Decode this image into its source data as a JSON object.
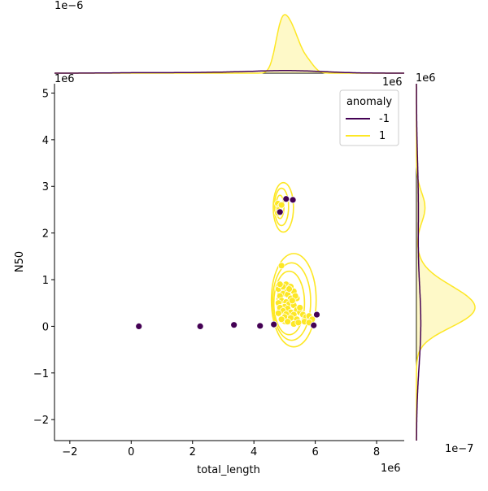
{
  "chart_data": {
    "type": "scatter",
    "title": "",
    "xlabel": "total_length",
    "ylabel": "N50",
    "xlim": [
      -2500000,
      8900000
    ],
    "ylim": [
      -2450000,
      5200000
    ],
    "x_ticks": [
      -2,
      0,
      2,
      4,
      6,
      8
    ],
    "y_ticks": [
      -2,
      -1,
      0,
      1,
      2,
      3,
      4,
      5
    ],
    "x_offset_label": "1e6",
    "y_offset_label": "1e6",
    "top_marginal_offset_label": "1e−6",
    "right_marginal_offset_label": "1e−7",
    "grid": false,
    "legend": {
      "title": "anomaly",
      "placement": "top-right",
      "entries": [
        {
          "label": "-1",
          "color": "#440154"
        },
        {
          "label": "1",
          "color": "#fde725"
        }
      ]
    },
    "series": [
      {
        "name": "-1",
        "color": "#440154",
        "points": [
          [
            250000,
            0
          ],
          [
            2250000,
            0
          ],
          [
            3350000,
            30000
          ],
          [
            4200000,
            10000
          ],
          [
            4650000,
            40000
          ],
          [
            5050000,
            2730000
          ],
          [
            5270000,
            2710000
          ],
          [
            5950000,
            20000
          ],
          [
            6050000,
            250000
          ],
          [
            4850000,
            2450000
          ]
        ]
      },
      {
        "name": "1",
        "color": "#fde725",
        "points": [
          [
            4780000,
            2630000
          ],
          [
            4850000,
            2560000
          ],
          [
            4820000,
            2500000
          ],
          [
            4900000,
            2600000
          ],
          [
            4780000,
            2430000
          ],
          [
            4900000,
            1300000
          ],
          [
            5050000,
            900000
          ],
          [
            5200000,
            850000
          ],
          [
            4800000,
            800000
          ],
          [
            5000000,
            750000
          ],
          [
            5300000,
            750000
          ],
          [
            4950000,
            700000
          ],
          [
            5100000,
            680000
          ],
          [
            4850000,
            650000
          ],
          [
            5200000,
            600000
          ],
          [
            5400000,
            600000
          ],
          [
            4900000,
            550000
          ],
          [
            5050000,
            520000
          ],
          [
            4800000,
            500000
          ],
          [
            5150000,
            480000
          ],
          [
            5300000,
            450000
          ],
          [
            5000000,
            420000
          ],
          [
            4850000,
            400000
          ],
          [
            5100000,
            380000
          ],
          [
            5400000,
            350000
          ],
          [
            4950000,
            330000
          ],
          [
            5200000,
            300000
          ],
          [
            5500000,
            300000
          ],
          [
            4800000,
            280000
          ],
          [
            5050000,
            260000
          ],
          [
            5300000,
            250000
          ],
          [
            5600000,
            250000
          ],
          [
            5700000,
            200000
          ],
          [
            5800000,
            220000
          ],
          [
            5900000,
            150000
          ],
          [
            5000000,
            200000
          ],
          [
            5200000,
            180000
          ],
          [
            5400000,
            150000
          ],
          [
            5650000,
            100000
          ],
          [
            5800000,
            80000
          ],
          [
            5100000,
            100000
          ],
          [
            5300000,
            50000
          ],
          [
            4900000,
            150000
          ],
          [
            5450000,
            80000
          ],
          [
            4950000,
            850000
          ],
          [
            5150000,
            800000
          ],
          [
            5350000,
            650000
          ],
          [
            4850000,
            900000
          ],
          [
            5250000,
            550000
          ],
          [
            5500000,
            400000
          ]
        ]
      }
    ],
    "contours": [
      {
        "cx": 4850000,
        "cy": 2560000,
        "rx": 130000,
        "ry": 250000
      },
      {
        "cx": 4900000,
        "cy": 2560000,
        "rx": 230000,
        "ry": 400000
      },
      {
        "cx": 4960000,
        "cy": 2550000,
        "rx": 330000,
        "ry": 530000
      },
      {
        "cx": 5050000,
        "cy": 500000,
        "rx": 300000,
        "ry": 450000
      },
      {
        "cx": 5150000,
        "cy": 500000,
        "rx": 500000,
        "ry": 680000
      },
      {
        "cx": 5230000,
        "cy": 530000,
        "rx": 620000,
        "ry": 830000
      },
      {
        "cx": 5300000,
        "cy": 560000,
        "rx": 730000,
        "ry": 1000000
      }
    ]
  }
}
